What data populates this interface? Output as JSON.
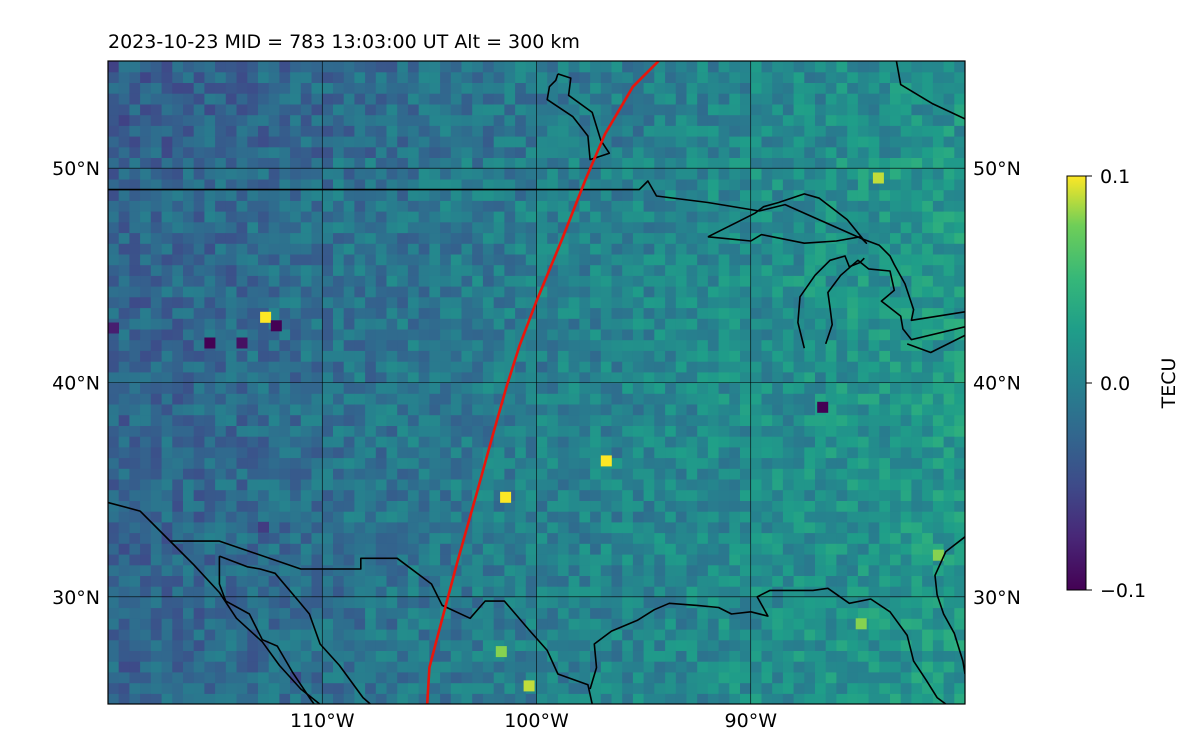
{
  "title": "2023-10-23  MID = 783    13:03:00  UT  Alt = 300 km",
  "map": {
    "lon_range": [
      -120,
      -80
    ],
    "lat_range": [
      25,
      55
    ],
    "lon_ticks": [
      {
        "value": -110,
        "label": "110°W"
      },
      {
        "value": -100,
        "label": "100°W"
      },
      {
        "value": -90,
        "label": "90°W"
      }
    ],
    "lat_ticks": [
      {
        "value": 50,
        "label": "50°N"
      },
      {
        "value": 40,
        "label": "40°N"
      },
      {
        "value": 30,
        "label": "30°N"
      }
    ],
    "grid": true,
    "track_color": "#e8160c",
    "track": [
      [
        -94.3,
        55
      ],
      [
        -95.5,
        53.8
      ],
      [
        -96.8,
        51.6
      ],
      [
        -97.7,
        49.5
      ],
      [
        -98.8,
        46.7
      ],
      [
        -100.0,
        43.8
      ],
      [
        -100.8,
        41.7
      ],
      [
        -101.4,
        39.8
      ],
      [
        -102.0,
        37.7
      ],
      [
        -102.8,
        34.8
      ],
      [
        -103.7,
        31.6
      ],
      [
        -104.5,
        28.6
      ],
      [
        -105.0,
        26.7
      ],
      [
        -105.1,
        25
      ]
    ]
  },
  "colorbar": {
    "label": "TECU",
    "min": -0.1,
    "max": 0.1,
    "ticks": [
      {
        "value": 0.1,
        "label": "0.1"
      },
      {
        "value": 0.0,
        "label": "0.0"
      },
      {
        "value": -0.1,
        "label": "−0.1"
      }
    ],
    "colormap": "viridis"
  },
  "tec_hotspots": [
    {
      "lon": -112.9,
      "lat": 42.8,
      "value": 0.1
    },
    {
      "lon": -112.4,
      "lat": 42.4,
      "value": -0.1
    },
    {
      "lon": -115.5,
      "lat": 41.6,
      "value": -0.1
    },
    {
      "lon": -114.0,
      "lat": 41.6,
      "value": -0.09
    },
    {
      "lon": -120.0,
      "lat": 42.3,
      "value": -0.08
    },
    {
      "lon": -86.9,
      "lat": 38.6,
      "value": -0.1
    },
    {
      "lon": -84.3,
      "lat": 49.3,
      "value": 0.09
    },
    {
      "lon": -101.7,
      "lat": 34.4,
      "value": 0.1
    },
    {
      "lon": -97.0,
      "lat": 36.1,
      "value": 0.1
    },
    {
      "lon": -100.6,
      "lat": 25.6,
      "value": 0.09
    },
    {
      "lon": -101.9,
      "lat": 27.2,
      "value": 0.08
    },
    {
      "lon": -81.5,
      "lat": 31.7,
      "value": 0.08
    },
    {
      "lon": -85.1,
      "lat": 28.5,
      "value": 0.08
    },
    {
      "lon": -113.0,
      "lat": 33.0,
      "value": -0.06
    },
    {
      "lon": -111.5,
      "lat": 26.0,
      "value": -0.05
    }
  ],
  "coastlines": [
    [
      [
        -120,
        49
      ],
      [
        -95.2,
        49
      ],
      [
        -94.8,
        49.4
      ],
      [
        -94.4,
        48.7
      ],
      [
        -92,
        48.4
      ],
      [
        -89.6,
        48
      ],
      [
        -88.4,
        48.3
      ],
      [
        -84.8,
        46.7
      ],
      [
        -84,
        46.4
      ],
      [
        -83.5,
        45.9
      ],
      [
        -83.3,
        45.5
      ],
      [
        -82.8,
        44.6
      ],
      [
        -82.4,
        43.4
      ],
      [
        -82.5,
        42.9
      ],
      [
        -80,
        43.3
      ]
    ],
    [
      [
        -92,
        46.8
      ],
      [
        -90,
        46.6
      ],
      [
        -89.5,
        46.9
      ],
      [
        -87.5,
        46.5
      ],
      [
        -86,
        46.6
      ],
      [
        -84.9,
        46.8
      ],
      [
        -84.6,
        46.5
      ],
      [
        -85.5,
        47.6
      ],
      [
        -86.8,
        48.6
      ],
      [
        -87.5,
        48.8
      ],
      [
        -88.7,
        48.4
      ],
      [
        -89.4,
        48.2
      ],
      [
        -89.8,
        47.9
      ],
      [
        -90.6,
        47.5
      ],
      [
        -92,
        46.8
      ]
    ],
    [
      [
        -87.5,
        41.6
      ],
      [
        -87.8,
        42.8
      ],
      [
        -87.7,
        44
      ],
      [
        -87,
        45
      ],
      [
        -86.3,
        45.7
      ],
      [
        -85.6,
        45.9
      ],
      [
        -85.4,
        45.4
      ],
      [
        -84.9,
        45.6
      ],
      [
        -84.7,
        45.8
      ]
    ],
    [
      [
        -86.5,
        41.8
      ],
      [
        -86.2,
        42.7
      ],
      [
        -86.3,
        43.5
      ],
      [
        -86.4,
        44.2
      ],
      [
        -85.8,
        45
      ],
      [
        -85,
        45.7
      ],
      [
        -84.5,
        45.3
      ],
      [
        -83.5,
        45.2
      ],
      [
        -83.3,
        44.3
      ],
      [
        -83.9,
        43.8
      ],
      [
        -83,
        43.1
      ],
      [
        -82.9,
        42.5
      ],
      [
        -82.5,
        42
      ],
      [
        -80,
        42.6
      ]
    ],
    [
      [
        -82.7,
        41.8
      ],
      [
        -81.6,
        41.4
      ],
      [
        -80,
        42.2
      ]
    ],
    [
      [
        -83.2,
        55
      ],
      [
        -83,
        53.9
      ],
      [
        -81.5,
        53
      ],
      [
        -80,
        52.3
      ]
    ],
    [
      [
        -99,
        54.4
      ],
      [
        -98.4,
        54.2
      ],
      [
        -98.5,
        53.4
      ],
      [
        -97.4,
        52.6
      ],
      [
        -97,
        51.3
      ],
      [
        -96.6,
        50.7
      ],
      [
        -97.5,
        50.4
      ],
      [
        -97.6,
        51.5
      ],
      [
        -98.3,
        52.4
      ],
      [
        -99.5,
        53.2
      ],
      [
        -99.4,
        53.8
      ],
      [
        -99.1,
        54.1
      ],
      [
        -99,
        54.4
      ]
    ],
    [
      [
        -120,
        34.4
      ],
      [
        -118.5,
        34
      ],
      [
        -117.2,
        32.7
      ],
      [
        -116,
        31.5
      ],
      [
        -114.8,
        30.2
      ],
      [
        -114,
        29
      ],
      [
        -112.8,
        27.9
      ],
      [
        -112,
        26.8
      ],
      [
        -111,
        25.7
      ],
      [
        -110,
        24.9
      ]
    ],
    [
      [
        -114.8,
        31.9
      ],
      [
        -114.8,
        30.6
      ],
      [
        -114.5,
        29.8
      ],
      [
        -113.4,
        29.2
      ],
      [
        -112.8,
        28
      ],
      [
        -112.1,
        27.7
      ],
      [
        -111.4,
        26.5
      ],
      [
        -110.6,
        25.3
      ],
      [
        -109.8,
        24.2
      ]
    ],
    [
      [
        -114.8,
        31.9
      ],
      [
        -113.5,
        31.4
      ],
      [
        -112.9,
        31.3
      ],
      [
        -112.2,
        31.1
      ],
      [
        -111.1,
        29.8
      ],
      [
        -110.6,
        29.2
      ],
      [
        -110.1,
        27.8
      ],
      [
        -109.2,
        26.8
      ],
      [
        -108.1,
        25.3
      ],
      [
        -107.3,
        24.6
      ]
    ],
    [
      [
        -117.1,
        32.6
      ],
      [
        -114.8,
        32.6
      ],
      [
        -111,
        31.3
      ],
      [
        -108.2,
        31.3
      ],
      [
        -108.2,
        31.8
      ],
      [
        -106.5,
        31.8
      ],
      [
        -104.9,
        30.6
      ],
      [
        -104.4,
        29.6
      ],
      [
        -103.1,
        29
      ],
      [
        -102.4,
        29.8
      ],
      [
        -101.5,
        29.8
      ],
      [
        -100.3,
        28.4
      ],
      [
        -99.5,
        27.5
      ],
      [
        -99,
        26.4
      ],
      [
        -97.6,
        25.9
      ],
      [
        -97.4,
        25
      ]
    ],
    [
      [
        -97.5,
        25.7
      ],
      [
        -97.2,
        26.7
      ],
      [
        -97.3,
        27.8
      ],
      [
        -96.5,
        28.4
      ],
      [
        -95.3,
        28.9
      ],
      [
        -94.5,
        29.4
      ],
      [
        -93.8,
        29.7
      ],
      [
        -92.5,
        29.6
      ],
      [
        -91.5,
        29.5
      ],
      [
        -90.9,
        29.2
      ],
      [
        -90,
        29.3
      ],
      [
        -89.2,
        29.1
      ],
      [
        -89.7,
        30
      ],
      [
        -89.1,
        30.3
      ],
      [
        -88.2,
        30.3
      ],
      [
        -87.1,
        30.3
      ],
      [
        -86.4,
        30.4
      ],
      [
        -85.4,
        29.7
      ],
      [
        -84.4,
        29.9
      ],
      [
        -83.5,
        29.3
      ],
      [
        -82.7,
        28.2
      ],
      [
        -82.4,
        27
      ],
      [
        -81.8,
        26.1
      ],
      [
        -81.3,
        25.3
      ],
      [
        -80.9,
        25
      ]
    ],
    [
      [
        -80,
        32.8
      ],
      [
        -80.9,
        32.1
      ],
      [
        -81.4,
        31
      ],
      [
        -81.3,
        30.1
      ],
      [
        -81,
        29.2
      ],
      [
        -80.5,
        28.3
      ],
      [
        -80.1,
        27
      ],
      [
        -80,
        26.4
      ]
    ]
  ]
}
